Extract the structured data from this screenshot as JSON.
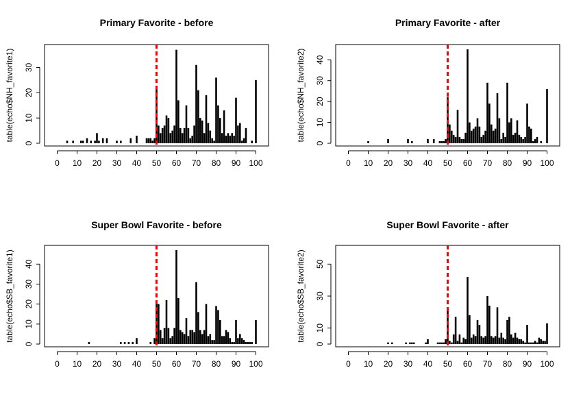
{
  "chart_data": [
    {
      "type": "bar",
      "title": "Primary Favorite - before",
      "xlabel": "",
      "ylabel": "table(echo$NH_favorite1)",
      "xlim": [
        -5,
        105
      ],
      "ylim": [
        0,
        38
      ],
      "xticks": [
        0,
        10,
        20,
        30,
        40,
        50,
        60,
        70,
        80,
        90,
        100
      ],
      "yticks": [
        0,
        10,
        20,
        30
      ],
      "reference_line": {
        "x": 50,
        "color": "#ff0000",
        "style": "dashed"
      },
      "x": [
        5,
        8,
        12,
        13,
        15,
        17,
        19,
        20,
        21,
        23,
        25,
        30,
        32,
        37,
        40,
        45,
        46,
        47,
        48,
        49,
        50,
        51,
        52,
        53,
        54,
        55,
        56,
        57,
        58,
        59,
        60,
        61,
        62,
        63,
        64,
        65,
        66,
        67,
        68,
        69,
        70,
        71,
        72,
        73,
        74,
        75,
        76,
        77,
        78,
        79,
        80,
        81,
        82,
        83,
        84,
        85,
        86,
        87,
        88,
        89,
        90,
        91,
        92,
        93,
        94,
        95,
        98,
        100
      ],
      "values": [
        1,
        1,
        1,
        1,
        2,
        1,
        1,
        4,
        1,
        2,
        2,
        1,
        1,
        2,
        3,
        2,
        2,
        2,
        1,
        2,
        22,
        7,
        4,
        6,
        7,
        11,
        10,
        4,
        5,
        7,
        37,
        17,
        6,
        4,
        6,
        15,
        6,
        2,
        3,
        7,
        31,
        21,
        10,
        9,
        4,
        19,
        8,
        5,
        2,
        1,
        26,
        15,
        10,
        4,
        13,
        3,
        4,
        3,
        4,
        3,
        18,
        7,
        8,
        1,
        2,
        6,
        1,
        25
      ]
    },
    {
      "type": "bar",
      "title": "Primary Favorite - after",
      "xlabel": "",
      "ylabel": "table(echo$NH_favorite2)",
      "xlim": [
        -5,
        105
      ],
      "ylim": [
        0,
        46
      ],
      "xticks": [
        0,
        10,
        20,
        30,
        40,
        50,
        60,
        70,
        80,
        90,
        100
      ],
      "yticks": [
        0,
        10,
        20,
        30,
        40
      ],
      "reference_line": {
        "x": 50,
        "color": "#ff0000",
        "style": "dashed"
      },
      "x": [
        10,
        20,
        30,
        32,
        40,
        43,
        46,
        47,
        48,
        49,
        50,
        51,
        52,
        53,
        54,
        55,
        56,
        57,
        58,
        59,
        60,
        61,
        62,
        63,
        64,
        65,
        66,
        67,
        68,
        69,
        70,
        71,
        72,
        73,
        74,
        75,
        76,
        77,
        78,
        79,
        80,
        81,
        82,
        83,
        84,
        85,
        86,
        87,
        88,
        89,
        90,
        91,
        92,
        93,
        94,
        95,
        97,
        100
      ],
      "values": [
        1,
        2,
        2,
        1,
        2,
        2,
        1,
        1,
        1,
        2,
        22,
        9,
        6,
        4,
        3,
        16,
        3,
        2,
        2,
        5,
        45,
        10,
        6,
        7,
        8,
        12,
        8,
        3,
        4,
        6,
        29,
        19,
        9,
        6,
        7,
        24,
        12,
        2,
        5,
        3,
        29,
        10,
        12,
        4,
        5,
        11,
        4,
        3,
        2,
        3,
        19,
        8,
        7,
        1,
        2,
        3,
        1,
        26
      ]
    },
    {
      "type": "bar",
      "title": "Super Bowl Favorite - before",
      "xlabel": "",
      "ylabel": "table(echo$SB_favorite1)",
      "xlim": [
        -5,
        105
      ],
      "ylim": [
        0,
        48
      ],
      "xticks": [
        0,
        10,
        20,
        30,
        40,
        50,
        60,
        70,
        80,
        90,
        100
      ],
      "yticks": [
        0,
        10,
        20,
        30,
        40
      ],
      "reference_line": {
        "x": 50,
        "color": "#ff0000",
        "style": "dashed"
      },
      "x": [
        16,
        32,
        34,
        36,
        38,
        40,
        47,
        49,
        50,
        51,
        52,
        53,
        54,
        55,
        56,
        57,
        58,
        59,
        60,
        61,
        62,
        63,
        64,
        65,
        66,
        67,
        68,
        69,
        70,
        71,
        72,
        73,
        74,
        75,
        76,
        77,
        78,
        79,
        80,
        81,
        82,
        83,
        84,
        85,
        86,
        87,
        88,
        89,
        90,
        91,
        92,
        93,
        94,
        95,
        96,
        97,
        98,
        100
      ],
      "values": [
        1,
        1,
        1,
        1,
        1,
        3,
        1,
        3,
        20,
        20,
        7,
        3,
        8,
        22,
        8,
        3,
        4,
        8,
        47,
        23,
        7,
        6,
        5,
        13,
        4,
        7,
        7,
        6,
        31,
        16,
        7,
        5,
        7,
        20,
        4,
        5,
        2,
        2,
        19,
        17,
        12,
        4,
        4,
        7,
        6,
        3,
        1,
        1,
        12,
        3,
        5,
        3,
        2,
        1,
        1,
        1,
        1,
        12
      ]
    },
    {
      "type": "bar",
      "title": "Super Bowl Favorite - after",
      "xlabel": "",
      "ylabel": "table(echo$SB_favorite2)",
      "xlim": [
        -5,
        105
      ],
      "ylim": [
        0,
        60
      ],
      "xticks": [
        0,
        10,
        20,
        30,
        40,
        50,
        60,
        70,
        80,
        90,
        100
      ],
      "yticks": [
        0,
        10,
        30,
        50
      ],
      "reference_line": {
        "x": 50,
        "color": "#ff0000",
        "style": "dashed"
      },
      "x": [
        20,
        22,
        29,
        31,
        32,
        33,
        39,
        40,
        45,
        46,
        47,
        48,
        49,
        50,
        51,
        52,
        53,
        54,
        55,
        56,
        57,
        58,
        59,
        60,
        61,
        62,
        63,
        64,
        65,
        66,
        67,
        68,
        69,
        70,
        71,
        72,
        73,
        74,
        75,
        76,
        77,
        78,
        79,
        80,
        81,
        82,
        83,
        84,
        85,
        86,
        87,
        88,
        89,
        90,
        91,
        92,
        93,
        94,
        95,
        96,
        97,
        98,
        99,
        100
      ],
      "values": [
        1,
        1,
        1,
        1,
        1,
        1,
        1,
        3,
        1,
        1,
        1,
        1,
        3,
        21,
        2,
        1,
        6,
        17,
        2,
        6,
        1,
        4,
        3,
        42,
        18,
        4,
        6,
        5,
        15,
        12,
        5,
        4,
        5,
        30,
        24,
        5,
        4,
        5,
        23,
        4,
        7,
        4,
        3,
        15,
        17,
        6,
        4,
        7,
        4,
        3,
        3,
        2,
        1,
        12,
        1,
        1,
        1,
        2,
        1,
        4,
        3,
        2,
        2,
        13
      ]
    }
  ]
}
